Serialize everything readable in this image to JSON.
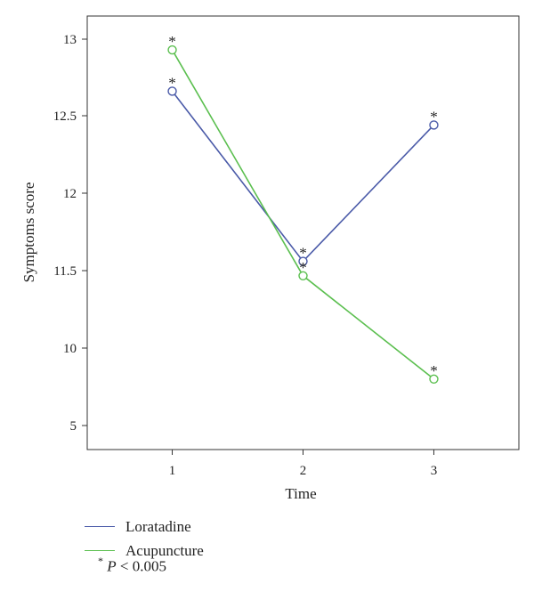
{
  "chart_data": {
    "type": "line",
    "xlabel": "Time",
    "ylabel": "Symptoms score",
    "x": [
      1,
      2,
      3
    ],
    "x_ticks": [
      "1",
      "2",
      "3"
    ],
    "xlim": [
      0.35,
      3.65
    ],
    "y_ticks": [
      "5",
      "10",
      "11.5",
      "12",
      "12.5",
      "13"
    ],
    "y_tick_note": "The y axis is broken between 5 and 11.5; tick labels read 5, 10, 11.5, 12, 12.5, 13.",
    "series": [
      {
        "name": "Loratadine",
        "color": "#4a5aa8",
        "values": [
          12.66,
          11.56,
          12.44
        ],
        "significant": [
          true,
          true,
          true
        ]
      },
      {
        "name": "Acupuncture",
        "color": "#5bbf4f",
        "values": [
          12.93,
          11.4,
          8.0
        ],
        "significant": [
          true,
          true,
          true
        ]
      }
    ],
    "significance_marker": "*",
    "legend": [
      "Loratadine",
      "Acupuncture"
    ],
    "legend_placement": "bottom-left",
    "grid": false
  },
  "footnote": {
    "marker": "*",
    "p_label": "P",
    "text": "< 0.005"
  }
}
